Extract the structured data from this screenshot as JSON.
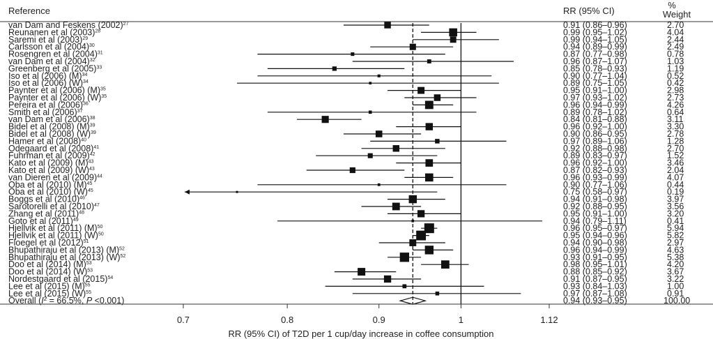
{
  "chart_data": {
    "type": "forest",
    "columns": {
      "reference": "Reference",
      "rr": "RR (95% CI)",
      "weight_top": "%",
      "weight": "Weight"
    },
    "xlabel": "RR (95% CI) of T2D per 1 cup/day increase in coffee consumption",
    "x_ticks": [
      "0.7",
      "0.8",
      "0.9",
      "1",
      "1.12"
    ],
    "xlim": [
      0.7,
      1.12
    ],
    "null_line": 1,
    "pooled_line": 0.94,
    "studies": [
      {
        "name": "van Dam and Feskens (2002)",
        "ref": "27",
        "rr": 0.91,
        "lo": 0.86,
        "hi": 0.96,
        "rr_text": "0.91 (0.86–0.96)",
        "weight": "2.70"
      },
      {
        "name": "Reunanen et al (2003)",
        "ref": "28",
        "rr": 0.99,
        "lo": 0.95,
        "hi": 1.02,
        "rr_text": "0.99 (0.95–1.02)",
        "weight": "4.04"
      },
      {
        "name": "Saremi et al (2003)",
        "ref": "29",
        "rr": 0.99,
        "lo": 0.94,
        "hi": 1.05,
        "rr_text": "0.99 (0.94–1.05)",
        "weight": "2.44"
      },
      {
        "name": "Carlsson et al (2004)",
        "ref": "30",
        "rr": 0.94,
        "lo": 0.89,
        "hi": 0.99,
        "rr_text": "0.94 (0.89–0.99)",
        "weight": "2.49"
      },
      {
        "name": "Rosengren et al (2004)",
        "ref": "31",
        "rr": 0.87,
        "lo": 0.77,
        "hi": 0.98,
        "rr_text": "0.87 (0.77–0.98)",
        "weight": "0.78"
      },
      {
        "name": "van Dam et al (2004)",
        "ref": "32",
        "rr": 0.96,
        "lo": 0.87,
        "hi": 1.07,
        "rr_text": "0.96 (0.87–1.07)",
        "weight": "1.03"
      },
      {
        "name": "Greenberg et al (2005)",
        "ref": "33",
        "rr": 0.85,
        "lo": 0.78,
        "hi": 0.93,
        "rr_text": "0.85 (0.78–0.93)",
        "weight": "1.19"
      },
      {
        "name": "Iso et al (2006) (M)",
        "ref": "34",
        "rr": 0.9,
        "lo": 0.77,
        "hi": 1.04,
        "rr_text": "0.90 (0.77–1.04)",
        "weight": "0.52"
      },
      {
        "name": "Iso et al (2006) (W)",
        "ref": "34",
        "rr": 0.89,
        "lo": 0.75,
        "hi": 1.05,
        "rr_text": "0.89 (0.75–1.05)",
        "weight": "0.42"
      },
      {
        "name": "Paynter et al (2006) (M)",
        "ref": "35",
        "rr": 0.95,
        "lo": 0.91,
        "hi": 1.0,
        "rr_text": "0.95 (0.91–1.00)",
        "weight": "2.98"
      },
      {
        "name": "Paynter et al (2006) (W)",
        "ref": "35",
        "rr": 0.97,
        "lo": 0.93,
        "hi": 1.02,
        "rr_text": "0.97 (0.93–1.02)",
        "weight": "2.73"
      },
      {
        "name": "Pereira et al (2006)",
        "ref": "36",
        "rr": 0.96,
        "lo": 0.94,
        "hi": 0.99,
        "rr_text": "0.96 (0.94–0.99)",
        "weight": "4.26"
      },
      {
        "name": "Smith et al (2006)",
        "ref": "37",
        "rr": 0.89,
        "lo": 0.78,
        "hi": 1.02,
        "rr_text": "0.89 (0.78–1.02)",
        "weight": "0.64"
      },
      {
        "name": "van Dam et al (2006)",
        "ref": "38",
        "rr": 0.84,
        "lo": 0.81,
        "hi": 0.88,
        "rr_text": "0.84 (0.81–0.88)",
        "weight": "3.11"
      },
      {
        "name": "Bidel et al (2008) (M)",
        "ref": "39",
        "rr": 0.96,
        "lo": 0.92,
        "hi": 1.0,
        "rr_text": "0.96 (0.92–1.00)",
        "weight": "3.30"
      },
      {
        "name": "Bidel et al (2008) (W)",
        "ref": "39",
        "rr": 0.9,
        "lo": 0.86,
        "hi": 0.95,
        "rr_text": "0.90 (0.86–0.95)",
        "weight": "2.78"
      },
      {
        "name": "Hamer et al (2008)",
        "ref": "40",
        "rr": 0.97,
        "lo": 0.89,
        "hi": 1.06,
        "rr_text": "0.97 (0.89–1.06)",
        "weight": "1.28"
      },
      {
        "name": "Odegaard et al (2008)",
        "ref": "41",
        "rr": 0.92,
        "lo": 0.88,
        "hi": 0.98,
        "rr_text": "0.92 (0.88–0.98)",
        "weight": "2.70"
      },
      {
        "name": "Fuhrman et al (2009)",
        "ref": "42",
        "rr": 0.89,
        "lo": 0.83,
        "hi": 0.97,
        "rr_text": "0.89 (0.83–0.97)",
        "weight": "1.52"
      },
      {
        "name": "Kato et al (2009) (M)",
        "ref": "43",
        "rr": 0.96,
        "lo": 0.92,
        "hi": 1.0,
        "rr_text": "0.96 (0.92–1.00)",
        "weight": "3.46"
      },
      {
        "name": "Kato et al (2009) (W)",
        "ref": "43",
        "rr": 0.87,
        "lo": 0.82,
        "hi": 0.93,
        "rr_text": "0.87 (0.82–0.93)",
        "weight": "2.04"
      },
      {
        "name": "van Dieren et al (2009)",
        "ref": "44",
        "rr": 0.96,
        "lo": 0.93,
        "hi": 0.99,
        "rr_text": "0.96 (0.93–0.99)",
        "weight": "4.07"
      },
      {
        "name": "Oba et al (2010) (M)",
        "ref": "45",
        "rr": 0.9,
        "lo": 0.77,
        "hi": 1.06,
        "rr_text": "0.90 (0.77–1.06)",
        "weight": "0.44"
      },
      {
        "name": "Oba et al (2010) (W)",
        "ref": "45",
        "rr": 0.75,
        "lo": 0.58,
        "hi": 0.97,
        "rr_text": "0.75 (0.58–0.97)",
        "weight": "0.19"
      },
      {
        "name": "Boggs et al (2010)",
        "ref": "46",
        "rr": 0.94,
        "lo": 0.91,
        "hi": 0.98,
        "rr_text": "0.94 (0.91–0.98)",
        "weight": "3.97"
      },
      {
        "name": "Sarotorelli et al (2010)",
        "ref": "47",
        "rr": 0.92,
        "lo": 0.88,
        "hi": 0.95,
        "rr_text": "0.92 (0.88–0.95)",
        "weight": "3.56"
      },
      {
        "name": "Zhang et al (2011)",
        "ref": "48",
        "rr": 0.95,
        "lo": 0.91,
        "hi": 1.0,
        "rr_text": "0.95 (0.91–1.00)",
        "weight": "3.20"
      },
      {
        "name": "Goto et al (2011)",
        "ref": "49",
        "rr": 0.94,
        "lo": 0.79,
        "hi": 1.11,
        "rr_text": "0.94 (0.79–1.11)",
        "weight": "0.41"
      },
      {
        "name": "Hjellvik et al (2011) (M)",
        "ref": "50",
        "rr": 0.96,
        "lo": 0.95,
        "hi": 0.97,
        "rr_text": "0.96 (0.95–0.97)",
        "weight": "5.94"
      },
      {
        "name": "Hjellvik et al (2011) (W)",
        "ref": "50",
        "rr": 0.95,
        "lo": 0.94,
        "hi": 0.96,
        "rr_text": "0.95 (0.94–0.96)",
        "weight": "5.82"
      },
      {
        "name": "Floegel et al (2012)",
        "ref": "51",
        "rr": 0.94,
        "lo": 0.9,
        "hi": 0.98,
        "rr_text": "0.94 (0.90–0.98)",
        "weight": "2.97"
      },
      {
        "name": "Bhupathiraju et al (2013) (M)",
        "ref": "52",
        "rr": 0.96,
        "lo": 0.94,
        "hi": 0.99,
        "rr_text": "0.96 (0.94–0.99)",
        "weight": "4.63"
      },
      {
        "name": "Bhupathiraju et al (2013) (W)",
        "ref": "52",
        "rr": 0.93,
        "lo": 0.91,
        "hi": 0.95,
        "rr_text": "0.93 (0.91–0.95)",
        "weight": "5.38"
      },
      {
        "name": "Doo et al (2014) (M)",
        "ref": "53",
        "rr": 0.98,
        "lo": 0.95,
        "hi": 1.01,
        "rr_text": "0.98 (0.95–1.01)",
        "weight": "4.20"
      },
      {
        "name": "Doo et al (2014) (W)",
        "ref": "53",
        "rr": 0.88,
        "lo": 0.85,
        "hi": 0.92,
        "rr_text": "0.88 (0.85–0.92)",
        "weight": "3.67"
      },
      {
        "name": "Nordestgaard et al (2015)",
        "ref": "54",
        "rr": 0.91,
        "lo": 0.87,
        "hi": 0.95,
        "rr_text": "0.91 (0.87–0.95)",
        "weight": "3.22"
      },
      {
        "name": "Lee et al (2015) (M)",
        "ref": "55",
        "rr": 0.93,
        "lo": 0.84,
        "hi": 1.03,
        "rr_text": "0.93 (0.84–1.03)",
        "weight": "1.00"
      },
      {
        "name": "Lee et al (2015) (W)",
        "ref": "55",
        "rr": 0.97,
        "lo": 0.87,
        "hi": 1.08,
        "rr_text": "0.97 (0.87–1.08)",
        "weight": "0.91"
      }
    ],
    "overall": {
      "name_prefix": "Overall (",
      "i2_symbol": "I",
      "i2_sup": "2",
      "i2_value": " = 66.5%, ",
      "p_symbol": "P",
      "p_value": " <0.001)",
      "rr": 0.94,
      "lo": 0.93,
      "hi": 0.95,
      "rr_text": "0.94 (0.93–0.95)",
      "weight": "100.00"
    }
  }
}
